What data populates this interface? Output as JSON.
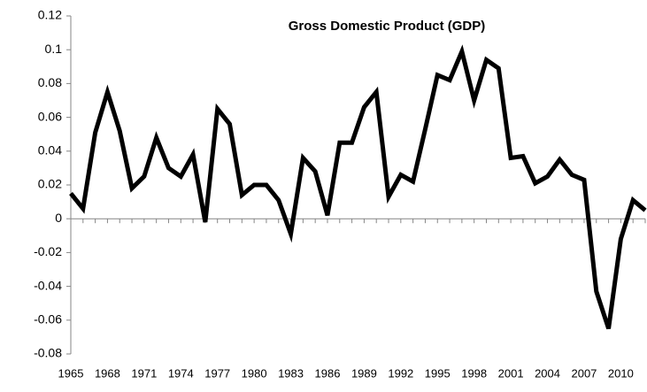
{
  "chart_data": {
    "type": "line",
    "title": "Gross Domestic Product (GDP)",
    "x": [
      1965,
      1966,
      1967,
      1968,
      1969,
      1970,
      1971,
      1972,
      1973,
      1974,
      1975,
      1976,
      1977,
      1978,
      1979,
      1980,
      1981,
      1982,
      1983,
      1984,
      1985,
      1986,
      1987,
      1988,
      1989,
      1990,
      1991,
      1992,
      1993,
      1994,
      1995,
      1996,
      1997,
      1998,
      1999,
      2000,
      2001,
      2002,
      2003,
      2004,
      2005,
      2006,
      2007,
      2008,
      2009,
      2010,
      2011,
      2012
    ],
    "series": [
      {
        "color": "#000000",
        "values": [
          0.015,
          0.006,
          0.051,
          0.075,
          0.052,
          0.018,
          0.025,
          0.048,
          0.03,
          0.025,
          0.038,
          -0.002,
          0.065,
          0.056,
          0.014,
          0.02,
          0.02,
          0.011,
          -0.009,
          0.036,
          0.028,
          0.002,
          0.045,
          0.045,
          0.066,
          0.075,
          0.013,
          0.026,
          0.022,
          0.053,
          0.085,
          0.082,
          0.099,
          0.07,
          0.094,
          0.089,
          0.036,
          0.037,
          0.021,
          0.025,
          0.035,
          0.026,
          0.023,
          -0.043,
          -0.065,
          -0.012,
          0.011,
          0.005
        ]
      }
    ],
    "xlim": [
      1965,
      2012
    ],
    "xticks": [
      1965,
      1968,
      1971,
      1974,
      1977,
      1980,
      1983,
      1986,
      1989,
      1992,
      1995,
      1998,
      2001,
      2004,
      2007,
      2010
    ],
    "ylim": [
      -0.08,
      0.12
    ],
    "yticks": [
      -0.08,
      -0.06,
      -0.04,
      -0.02,
      0,
      0.02,
      0.04,
      0.06,
      0.08,
      0.1,
      0.12
    ]
  }
}
